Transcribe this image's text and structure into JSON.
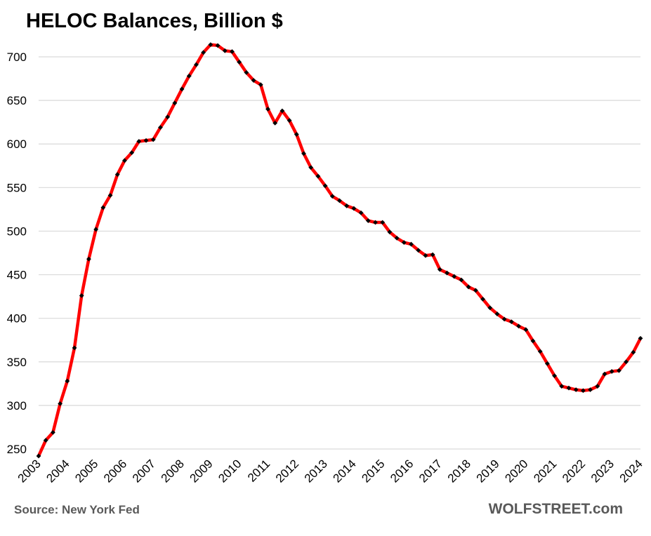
{
  "title": "HELOC Balances, Billion $",
  "source": "Source: New York Fed",
  "brand": "WOLFSTREET.com",
  "colors": {
    "line": "#ff0000",
    "marker": "#000000",
    "grid": "#d9d9d9",
    "note_text": "#595959"
  },
  "chart_data": {
    "type": "line",
    "title": "HELOC Balances, Billion $",
    "xlabel": "",
    "ylabel": "",
    "ylim": [
      250,
      720
    ],
    "yticks": [
      250,
      300,
      350,
      400,
      450,
      500,
      550,
      600,
      650,
      700
    ],
    "xticks": [
      "2003",
      "2004",
      "2005",
      "2006",
      "2007",
      "2008",
      "2009",
      "2010",
      "2011",
      "2012",
      "2013",
      "2014",
      "2015",
      "2016",
      "2017",
      "2018",
      "2019",
      "2020",
      "2021",
      "2022",
      "2023",
      "2024"
    ],
    "grid": true,
    "legend": "none",
    "marker": "diamond",
    "series": [
      {
        "x": [
          2003.0,
          2003.25,
          2003.5,
          2003.75,
          2004.0,
          2004.25,
          2004.5,
          2004.75,
          2005.0,
          2005.25,
          2005.5,
          2005.75,
          2006.0,
          2006.25,
          2006.5,
          2006.75,
          2007.0,
          2007.25,
          2007.5,
          2007.75,
          2008.0,
          2008.25,
          2008.5,
          2008.75,
          2009.0,
          2009.25,
          2009.5,
          2009.75,
          2010.0,
          2010.25,
          2010.5,
          2010.75,
          2011.0,
          2011.25,
          2011.5,
          2011.75,
          2012.0,
          2012.25,
          2012.5,
          2012.75,
          2013.0,
          2013.25,
          2013.5,
          2013.75,
          2014.0,
          2014.25,
          2014.5,
          2014.75,
          2015.0,
          2015.25,
          2015.5,
          2015.75,
          2016.0,
          2016.25,
          2016.5,
          2016.75,
          2017.0,
          2017.25,
          2017.5,
          2017.75,
          2018.0,
          2018.25,
          2018.5,
          2018.75,
          2019.0,
          2019.25,
          2019.5,
          2019.75,
          2020.0,
          2020.25,
          2020.5,
          2020.75,
          2021.0,
          2021.25,
          2021.5,
          2021.75,
          2022.0,
          2022.25,
          2022.5,
          2022.75,
          2023.0,
          2023.25,
          2023.5,
          2023.75,
          2024.0
        ],
        "values": [
          242,
          260,
          269,
          302,
          328,
          366,
          426,
          468,
          502,
          527,
          541,
          565,
          581,
          590,
          603,
          604,
          605,
          619,
          631,
          647,
          663,
          678,
          691,
          705,
          714,
          713,
          707,
          706,
          694,
          682,
          673,
          668,
          640,
          624,
          638,
          627,
          611,
          589,
          573,
          563,
          552,
          540,
          535,
          529,
          526,
          521,
          512,
          510,
          510,
          499,
          492,
          487,
          485,
          478,
          472,
          473,
          456,
          452,
          448,
          444,
          436,
          432,
          422,
          412,
          405,
          399,
          396,
          391,
          387,
          374,
          362,
          348,
          334,
          322,
          320,
          318,
          317,
          318,
          322,
          336,
          339,
          340,
          350,
          361,
          377
        ]
      }
    ]
  }
}
